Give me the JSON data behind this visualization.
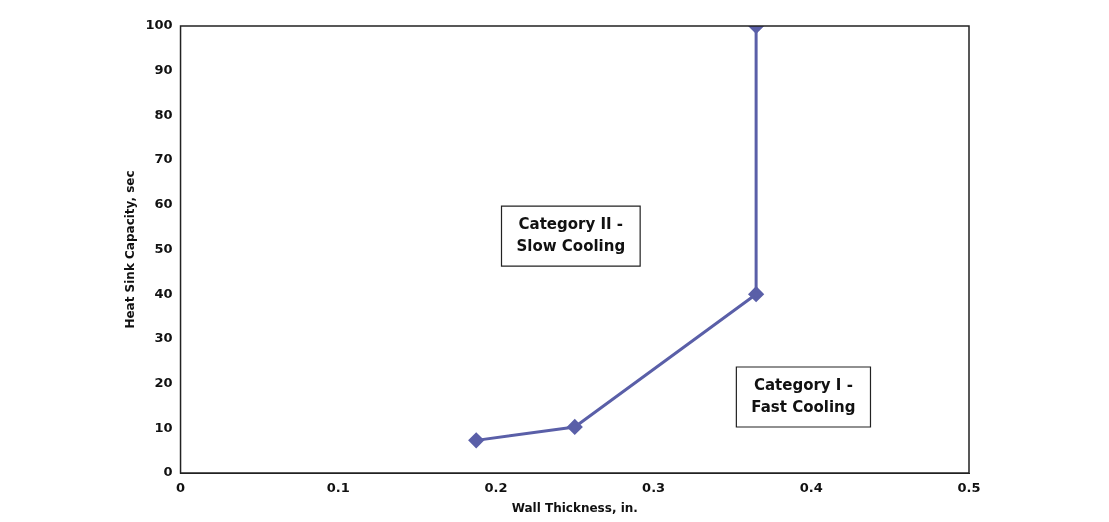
{
  "chart_data": {
    "type": "line",
    "xlabel": "Wall Thickness, in.",
    "ylabel": "Heat Sink Capacity, sec",
    "series": [
      {
        "color": "#5a5fa8",
        "x": [
          0.1875,
          0.25,
          0.365,
          0.365
        ],
        "values": [
          7.3,
          10.3,
          40,
          100
        ]
      }
    ],
    "xlim": [
      0,
      0.5
    ],
    "xticks": [
      0,
      0.1,
      0.2,
      0.3,
      0.4,
      0.5
    ],
    "ylim": [
      0,
      100
    ],
    "yticks": [
      0,
      10,
      20,
      30,
      40,
      50,
      60,
      70,
      80,
      90,
      100
    ],
    "annotations": [
      "Category II -\nSlow Cooling",
      "Category I -\nFast Cooling"
    ],
    "grid": false,
    "legend": false,
    "marker": "diamond",
    "line_style": "solid"
  }
}
